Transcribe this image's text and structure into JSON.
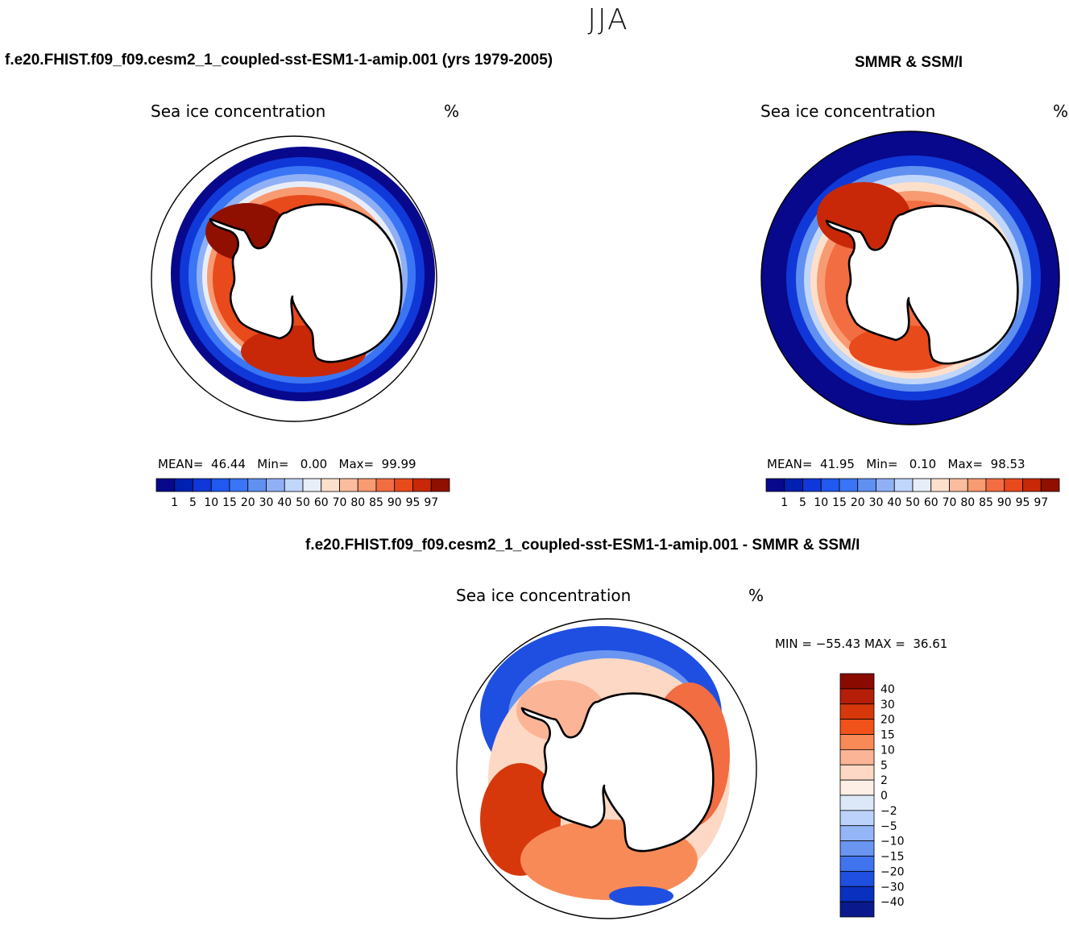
{
  "figure": {
    "season": "JJA"
  },
  "panels": {
    "model": {
      "case_title": "f.e20.FHIST.f09_f09.cesm2_1_coupled-sst-ESM1-1-amip.001 (yrs 1979-2005)",
      "var_title": "Sea ice concentration",
      "units": "%",
      "stats": {
        "mean_label": "MEAN=",
        "mean": "46.44",
        "min_label": "Min=",
        "min": "0.00",
        "max_label": "Max=",
        "max": "99.99"
      }
    },
    "obs": {
      "case_title": "SMMR & SSM/I",
      "var_title": "Sea ice concentration",
      "units": "%",
      "stats": {
        "mean_label": "MEAN=",
        "mean": "41.95",
        "min_label": "Min=",
        "min": "0.10",
        "max_label": "Max=",
        "max": "98.53"
      }
    },
    "diff": {
      "case_title": "f.e20.FHIST.f09_f09.cesm2_1_coupled-sst-ESM1-1-amip.001 - SMMR & SSM/I",
      "var_title": "Sea ice concentration",
      "units": "%",
      "stats": {
        "min_label": "MIN =",
        "min": "−55.43",
        "max_label": "MAX =",
        "max": "36.61"
      }
    }
  },
  "chart_data": [
    {
      "type": "heatmap",
      "title": "Sea ice concentration",
      "projection": "south-polar-stereographic",
      "units": "%",
      "colorbar": {
        "levels": [
          "1",
          "5",
          "10",
          "15",
          "20",
          "30",
          "40",
          "50",
          "60",
          "70",
          "80",
          "85",
          "90",
          "95",
          "97"
        ],
        "colors": [
          "#08088c",
          "#0020b0",
          "#1038d8",
          "#2058f0",
          "#3a75f5",
          "#6090f0",
          "#90b0f5",
          "#c0d6fa",
          "#e8eef8",
          "#fde0cc",
          "#fbbd9e",
          "#f89a72",
          "#f26d42",
          "#e84a1c",
          "#c82808",
          "#901000"
        ]
      },
      "stats": {
        "mean": 46.44,
        "min": 0.0,
        "max": 99.99
      }
    },
    {
      "type": "heatmap",
      "title": "Sea ice concentration",
      "projection": "south-polar-stereographic",
      "units": "%",
      "colorbar": {
        "levels": [
          "1",
          "5",
          "10",
          "15",
          "20",
          "30",
          "40",
          "50",
          "60",
          "70",
          "80",
          "85",
          "90",
          "95",
          "97"
        ],
        "colors": [
          "#08088c",
          "#0020b0",
          "#1038d8",
          "#2058f0",
          "#3a75f5",
          "#6090f0",
          "#90b0f5",
          "#c0d6fa",
          "#e8eef8",
          "#fde0cc",
          "#fbbd9e",
          "#f89a72",
          "#f26d42",
          "#e84a1c",
          "#c82808",
          "#901000"
        ]
      },
      "stats": {
        "mean": 41.95,
        "min": 0.1,
        "max": 98.53
      }
    },
    {
      "type": "heatmap",
      "title": "Sea ice concentration",
      "projection": "south-polar-stereographic",
      "units": "%",
      "colorbar": {
        "levels": [
          "40",
          "30",
          "20",
          "15",
          "10",
          "5",
          "2",
          "0",
          "−2",
          "−5",
          "−10",
          "−15",
          "−20",
          "−30",
          "−40"
        ],
        "colors": [
          "#8b0a00",
          "#b51e08",
          "#d6380c",
          "#f0521a",
          "#f88a58",
          "#fbb496",
          "#fdd8c4",
          "#fdefe6",
          "#dce8f8",
          "#bcd2fa",
          "#94b6f8",
          "#6a96f2",
          "#3f74ee",
          "#1e4fe0",
          "#0a30c0",
          "#0a1a8c"
        ]
      },
      "stats": {
        "min": -55.43,
        "max": 36.61
      }
    }
  ]
}
